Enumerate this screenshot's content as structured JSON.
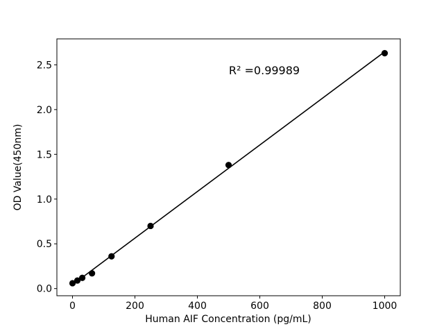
{
  "chart_data": {
    "type": "scatter",
    "title": "",
    "xlabel": "Human AIF Concentration (pg/mL)",
    "ylabel": "OD Value(450nm)",
    "annotation": {
      "text": "R² =0.99989"
    },
    "points": [
      {
        "x": 0,
        "y": 0.06
      },
      {
        "x": 15.6,
        "y": 0.09
      },
      {
        "x": 31.25,
        "y": 0.12
      },
      {
        "x": 62.5,
        "y": 0.17
      },
      {
        "x": 125,
        "y": 0.36
      },
      {
        "x": 250,
        "y": 0.7
      },
      {
        "x": 500,
        "y": 1.38
      },
      {
        "x": 1000,
        "y": 2.63
      }
    ],
    "fit_line": {
      "type": "linear",
      "draw_from_x": 0,
      "draw_to_x": 1000
    },
    "xlim": [
      -50,
      1050
    ],
    "ylim": [
      -0.08,
      2.79
    ],
    "xticks": [
      0,
      200,
      400,
      600,
      800,
      1000
    ],
    "xtick_labels": [
      "0",
      "200",
      "400",
      "600",
      "800",
      "1000"
    ],
    "yticks": [
      0.0,
      0.5,
      1.0,
      1.5,
      2.0,
      2.5
    ],
    "ytick_labels": [
      "0.0",
      "0.5",
      "1.0",
      "1.5",
      "2.0",
      "2.5"
    ],
    "grid": false,
    "legend": null,
    "marker_color": "#000000",
    "line_color": "#000000",
    "axis_color": "#000000",
    "background": "#ffffff"
  }
}
